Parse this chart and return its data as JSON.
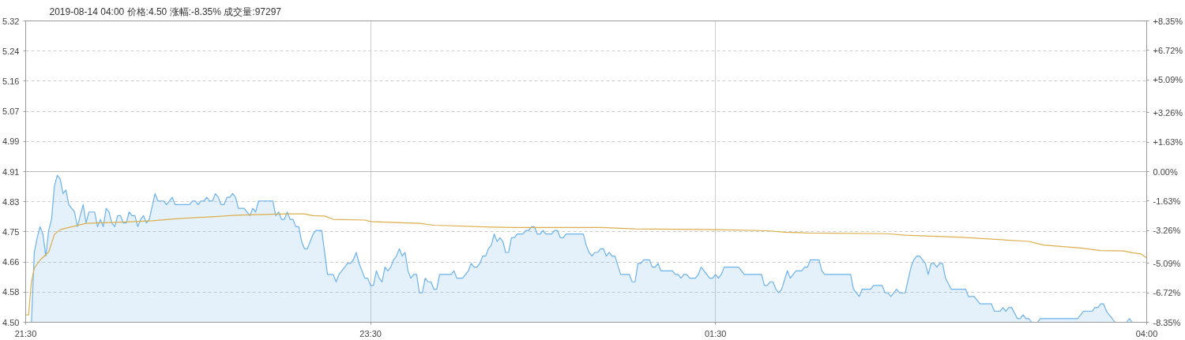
{
  "chart_data": {
    "type": "line",
    "title": "2019-08-14 04:00  价格:4.50  涨幅:-8.35%  成交量:97297",
    "xlim": [
      "2019-08-13T21:30",
      "2019-08-14T04:00"
    ],
    "xticks": [
      {
        "value": "2019-08-13T21:30",
        "label": "21:30"
      },
      {
        "value": "2019-08-13T23:30",
        "label": "23:30"
      },
      {
        "value": "2019-08-14T01:30",
        "label": "01:30"
      },
      {
        "value": "2019-08-14T04:00",
        "label": "04:00"
      }
    ],
    "ylim": [
      4.5,
      5.32
    ],
    "yticks": [
      {
        "value": 4.5,
        "label": "4.50"
      },
      {
        "value": 4.582,
        "label": "4.58"
      },
      {
        "value": 4.664,
        "label": "4.66"
      },
      {
        "value": 4.746,
        "label": "4.75"
      },
      {
        "value": 4.828,
        "label": "4.83"
      },
      {
        "value": 4.91,
        "label": "4.91"
      },
      {
        "value": 4.992,
        "label": "4.99"
      },
      {
        "value": 5.074,
        "label": "5.07"
      },
      {
        "value": 5.156,
        "label": "5.16"
      },
      {
        "value": 5.238,
        "label": "5.24"
      },
      {
        "value": 5.32,
        "label": "5.32"
      }
    ],
    "y2lim": [
      -8.35,
      8.35
    ],
    "y2ticks": [
      {
        "value": -8.35,
        "label": "-8.35%"
      },
      {
        "value": -6.72,
        "label": "-6.72%"
      },
      {
        "value": -5.09,
        "label": "-5.09%"
      },
      {
        "value": -3.26,
        "label": "-3.26%"
      },
      {
        "value": -1.63,
        "label": "-1.63%"
      },
      {
        "value": 0,
        "label": "0.00%"
      },
      {
        "value": 1.63,
        "label": "+1.63%"
      },
      {
        "value": 3.26,
        "label": "+3.26%"
      },
      {
        "value": 5.09,
        "label": "+5.09%"
      },
      {
        "value": 6.72,
        "label": "+6.72%"
      },
      {
        "value": 8.35,
        "label": "+8.35%"
      }
    ],
    "grid": true,
    "ref_lines": [
      {
        "axis": "y",
        "value": 4.91,
        "color": "#b8b8b8",
        "line_style": "solid"
      }
    ],
    "series": [
      {
        "type": "area",
        "color": "#6cb2eb",
        "x": [
          "2019-08-13T21:30",
          "2019-08-13T21:32",
          "2019-08-13T21:33",
          "2019-08-13T21:34",
          "2019-08-13T21:35",
          "2019-08-13T21:36",
          "2019-08-13T21:37",
          "2019-08-13T21:38",
          "2019-08-13T21:39",
          "2019-08-13T21:40",
          "2019-08-13T21:41",
          "2019-08-13T21:42",
          "2019-08-13T21:43",
          "2019-08-13T21:44",
          "2019-08-13T21:45",
          "2019-08-13T21:47",
          "2019-08-13T21:48",
          "2019-08-13T21:50",
          "2019-08-13T21:51",
          "2019-08-13T21:52",
          "2019-08-13T21:54",
          "2019-08-13T21:55",
          "2019-08-13T21:56",
          "2019-08-13T21:57",
          "2019-08-13T21:58",
          "2019-08-13T21:59",
          "2019-08-13T22:00",
          "2019-08-13T22:01",
          "2019-08-13T22:02",
          "2019-08-13T22:03",
          "2019-08-13T22:04",
          "2019-08-13T22:05",
          "2019-08-13T22:06",
          "2019-08-13T22:07",
          "2019-08-13T22:08",
          "2019-08-13T22:09",
          "2019-08-13T22:10",
          "2019-08-13T22:11",
          "2019-08-13T22:12",
          "2019-08-13T22:13",
          "2019-08-13T22:15",
          "2019-08-13T22:16",
          "2019-08-13T22:18",
          "2019-08-13T22:19",
          "2019-08-13T22:21",
          "2019-08-13T22:22",
          "2019-08-13T22:27",
          "2019-08-13T22:28",
          "2019-08-13T22:29",
          "2019-08-13T22:30",
          "2019-08-13T22:31",
          "2019-08-13T22:32",
          "2019-08-13T22:33",
          "2019-08-13T22:34",
          "2019-08-13T22:35",
          "2019-08-13T22:36",
          "2019-08-13T22:37",
          "2019-08-13T22:38",
          "2019-08-13T22:39",
          "2019-08-13T22:40",
          "2019-08-13T22:41",
          "2019-08-13T22:42",
          "2019-08-13T22:43",
          "2019-08-13T22:44",
          "2019-08-13T22:46",
          "2019-08-13T22:48",
          "2019-08-13T22:49",
          "2019-08-13T22:50",
          "2019-08-13T22:51",
          "2019-08-13T22:56",
          "2019-08-13T22:57",
          "2019-08-13T22:58",
          "2019-08-13T22:59",
          "2019-08-13T23:00",
          "2019-08-13T23:01",
          "2019-08-13T23:02",
          "2019-08-13T23:03",
          "2019-08-13T23:04",
          "2019-08-13T23:05",
          "2019-08-13T23:06",
          "2019-08-13T23:07",
          "2019-08-13T23:08",
          "2019-08-13T23:10",
          "2019-08-13T23:11",
          "2019-08-13T23:13",
          "2019-08-13T23:15",
          "2019-08-13T23:17",
          "2019-08-13T23:18",
          "2019-08-13T23:19",
          "2019-08-13T23:22",
          "2019-08-13T23:23",
          "2019-08-13T23:24",
          "2019-08-13T23:25",
          "2019-08-13T23:26",
          "2019-08-13T23:28",
          "2019-08-13T23:29",
          "2019-08-13T23:30",
          "2019-08-13T23:31",
          "2019-08-13T23:32",
          "2019-08-13T23:33",
          "2019-08-13T23:34",
          "2019-08-13T23:35",
          "2019-08-13T23:36",
          "2019-08-13T23:37",
          "2019-08-13T23:38",
          "2019-08-13T23:39",
          "2019-08-13T23:40",
          "2019-08-13T23:41",
          "2019-08-13T23:42",
          "2019-08-13T23:43",
          "2019-08-13T23:44",
          "2019-08-13T23:45",
          "2019-08-13T23:46",
          "2019-08-13T23:47",
          "2019-08-13T23:48",
          "2019-08-13T23:49",
          "2019-08-13T23:50",
          "2019-08-13T23:51",
          "2019-08-13T23:52",
          "2019-08-13T23:53",
          "2019-08-13T23:54",
          "2019-08-13T23:58",
          "2019-08-13T23:59",
          "2019-08-14T00:00",
          "2019-08-14T00:02",
          "2019-08-14T00:04",
          "2019-08-14T00:05",
          "2019-08-14T00:06",
          "2019-08-14T00:07",
          "2019-08-14T00:08",
          "2019-08-14T00:09",
          "2019-08-14T00:10",
          "2019-08-14T00:11",
          "2019-08-14T00:12",
          "2019-08-14T00:13",
          "2019-08-14T00:14",
          "2019-08-14T00:15",
          "2019-08-14T00:16",
          "2019-08-14T00:17",
          "2019-08-14T00:18",
          "2019-08-14T00:19",
          "2019-08-14T00:20",
          "2019-08-14T00:21",
          "2019-08-14T00:23",
          "2019-08-14T00:24",
          "2019-08-14T00:25",
          "2019-08-14T00:26",
          "2019-08-14T00:27",
          "2019-08-14T00:28",
          "2019-08-14T00:29",
          "2019-08-14T00:30",
          "2019-08-14T00:31",
          "2019-08-14T00:33",
          "2019-08-14T00:34",
          "2019-08-14T00:35",
          "2019-08-14T00:36",
          "2019-08-14T00:37",
          "2019-08-14T00:38",
          "2019-08-14T00:44",
          "2019-08-14T00:45",
          "2019-08-14T00:46",
          "2019-08-14T00:47",
          "2019-08-14T00:48",
          "2019-08-14T00:49",
          "2019-08-14T00:50",
          "2019-08-14T00:51",
          "2019-08-14T00:52",
          "2019-08-14T00:53",
          "2019-08-14T00:54",
          "2019-08-14T00:55",
          "2019-08-14T00:57",
          "2019-08-14T01:00",
          "2019-08-14T01:01",
          "2019-08-14T01:02",
          "2019-08-14T01:03",
          "2019-08-14T01:04",
          "2019-08-14T01:05",
          "2019-08-14T01:07",
          "2019-08-14T01:08",
          "2019-08-14T01:09",
          "2019-08-14T01:10",
          "2019-08-14T01:11",
          "2019-08-14T01:15",
          "2019-08-14T01:16",
          "2019-08-14T01:17",
          "2019-08-14T01:18",
          "2019-08-14T01:19",
          "2019-08-14T01:20",
          "2019-08-14T01:21",
          "2019-08-14T01:23",
          "2019-08-14T01:24",
          "2019-08-14T01:25",
          "2019-08-14T01:26",
          "2019-08-14T01:28",
          "2019-08-14T01:29",
          "2019-08-14T01:30",
          "2019-08-14T01:31",
          "2019-08-14T01:32",
          "2019-08-14T01:33",
          "2019-08-14T01:38",
          "2019-08-14T01:40",
          "2019-08-14T01:46",
          "2019-08-14T01:47",
          "2019-08-14T01:48",
          "2019-08-14T01:49",
          "2019-08-14T01:50",
          "2019-08-14T01:51",
          "2019-08-14T01:52",
          "2019-08-14T01:53",
          "2019-08-14T01:55",
          "2019-08-14T01:56",
          "2019-08-14T01:58",
          "2019-08-14T02:00",
          "2019-08-14T02:01",
          "2019-08-14T02:02",
          "2019-08-14T02:03",
          "2019-08-14T02:06",
          "2019-08-14T02:07",
          "2019-08-14T02:08",
          "2019-08-14T02:17",
          "2019-08-14T02:18",
          "2019-08-14T02:20",
          "2019-08-14T02:21",
          "2019-08-14T02:24",
          "2019-08-14T02:25",
          "2019-08-14T02:28",
          "2019-08-14T02:29",
          "2019-08-14T02:30",
          "2019-08-14T02:31",
          "2019-08-14T02:33",
          "2019-08-14T02:34",
          "2019-08-14T02:36",
          "2019-08-14T02:38",
          "2019-08-14T02:39",
          "2019-08-14T02:40",
          "2019-08-14T02:41",
          "2019-08-14T02:43",
          "2019-08-14T02:44",
          "2019-08-14T02:45",
          "2019-08-14T02:46",
          "2019-08-14T02:47",
          "2019-08-14T02:48",
          "2019-08-14T02:49",
          "2019-08-14T02:50",
          "2019-08-14T02:52",
          "2019-08-14T02:57",
          "2019-08-14T02:58",
          "2019-08-14T03:00",
          "2019-08-14T03:02",
          "2019-08-14T03:06",
          "2019-08-14T03:07",
          "2019-08-14T03:09",
          "2019-08-14T03:10",
          "2019-08-14T03:11",
          "2019-08-14T03:12",
          "2019-08-14T03:13",
          "2019-08-14T03:15",
          "2019-08-14T03:16",
          "2019-08-14T03:17",
          "2019-08-14T03:18",
          "2019-08-14T03:19",
          "2019-08-14T03:20",
          "2019-08-14T03:22",
          "2019-08-14T03:23",
          "2019-08-14T03:36",
          "2019-08-14T03:38",
          "2019-08-14T03:41",
          "2019-08-14T03:42",
          "2019-08-14T03:43",
          "2019-08-14T03:44",
          "2019-08-14T03:45",
          "2019-08-14T03:46",
          "2019-08-14T03:49",
          "2019-08-14T03:53",
          "2019-08-14T03:54",
          "2019-08-14T03:55",
          "2019-08-14T04:00"
        ],
        "values": [
          4.5,
          4.5,
          4.69,
          4.73,
          4.76,
          4.74,
          4.68,
          4.75,
          4.78,
          4.87,
          4.9,
          4.89,
          4.85,
          4.86,
          4.82,
          4.8,
          4.76,
          4.82,
          4.77,
          4.8,
          4.8,
          4.76,
          4.78,
          4.76,
          4.81,
          4.8,
          4.77,
          4.76,
          4.79,
          4.79,
          4.77,
          4.77,
          4.8,
          4.79,
          4.79,
          4.76,
          4.78,
          4.79,
          4.77,
          4.78,
          4.85,
          4.83,
          4.83,
          4.82,
          4.84,
          4.82,
          4.82,
          4.83,
          4.83,
          4.82,
          4.83,
          4.83,
          4.84,
          4.83,
          4.83,
          4.85,
          4.84,
          4.82,
          4.82,
          4.84,
          4.84,
          4.85,
          4.84,
          4.81,
          4.81,
          4.79,
          4.81,
          4.8,
          4.83,
          4.83,
          4.79,
          4.8,
          4.78,
          4.78,
          4.8,
          4.78,
          4.78,
          4.76,
          4.76,
          4.72,
          4.7,
          4.7,
          4.74,
          4.75,
          4.75,
          4.63,
          4.63,
          4.61,
          4.63,
          4.66,
          4.66,
          4.67,
          4.69,
          4.66,
          4.62,
          4.62,
          4.6,
          4.6,
          4.64,
          4.62,
          4.61,
          4.65,
          4.64,
          4.65,
          4.67,
          4.68,
          4.7,
          4.68,
          4.69,
          4.64,
          4.62,
          4.63,
          4.63,
          4.58,
          4.58,
          4.62,
          4.61,
          4.61,
          4.59,
          4.59,
          4.63,
          4.63,
          4.64,
          4.62,
          4.62,
          4.64,
          4.66,
          4.65,
          4.65,
          4.66,
          4.68,
          4.68,
          4.7,
          4.71,
          4.74,
          4.72,
          4.73,
          4.72,
          4.69,
          4.69,
          4.73,
          4.73,
          4.74,
          4.74,
          4.75,
          4.75,
          4.76,
          4.76,
          4.74,
          4.74,
          4.75,
          4.74,
          4.74,
          4.75,
          4.75,
          4.73,
          4.73,
          4.74,
          4.74,
          4.71,
          4.69,
          4.68,
          4.69,
          4.69,
          4.7,
          4.7,
          4.68,
          4.69,
          4.68,
          4.68,
          4.63,
          4.63,
          4.61,
          4.61,
          4.66,
          4.66,
          4.67,
          4.67,
          4.65,
          4.65,
          4.66,
          4.64,
          4.64,
          4.63,
          4.63,
          4.62,
          4.63,
          4.63,
          4.62,
          4.62,
          4.63,
          4.65,
          4.64,
          4.62,
          4.62,
          4.63,
          4.62,
          4.63,
          4.65,
          4.65,
          4.63,
          4.63,
          4.6,
          4.6,
          4.61,
          4.61,
          4.59,
          4.58,
          4.59,
          4.64,
          4.62,
          4.64,
          4.64,
          4.65,
          4.65,
          4.67,
          4.67,
          4.64,
          4.63,
          4.63,
          4.59,
          4.57,
          4.59,
          4.59,
          4.6,
          4.6,
          4.58,
          4.58,
          4.57,
          4.59,
          4.58,
          4.58,
          4.65,
          4.67,
          4.68,
          4.68,
          4.66,
          4.63,
          4.66,
          4.66,
          4.65,
          4.66,
          4.66,
          4.62,
          4.59,
          4.59,
          4.57,
          4.57,
          4.55,
          4.55,
          4.53,
          4.53,
          4.54,
          4.53,
          4.54,
          4.54,
          4.51,
          4.51,
          4.52,
          4.51,
          4.51,
          4.5,
          4.5,
          4.51,
          4.51,
          4.53,
          4.53,
          4.54,
          4.54,
          4.55,
          4.55,
          4.53,
          4.5,
          4.5,
          4.51,
          4.5,
          4.5
        ]
      },
      {
        "color": "#dcae4c",
        "x": [
          "2019-08-13T21:30",
          "2019-08-13T21:31",
          "2019-08-13T21:32",
          "2019-08-13T21:33",
          "2019-08-13T21:35",
          "2019-08-13T21:38",
          "2019-08-13T21:40",
          "2019-08-13T21:42",
          "2019-08-13T21:45",
          "2019-08-13T21:51",
          "2019-08-13T22:05",
          "2019-08-13T22:14",
          "2019-08-13T22:23",
          "2019-08-13T22:37",
          "2019-08-13T22:43",
          "2019-08-13T23:00",
          "2019-08-13T23:07",
          "2019-08-13T23:10",
          "2019-08-13T23:14",
          "2019-08-13T23:17",
          "2019-08-13T23:28",
          "2019-08-13T23:30",
          "2019-08-13T23:47",
          "2019-08-13T23:52",
          "2019-08-14T00:12",
          "2019-08-14T00:20",
          "2019-08-14T00:50",
          "2019-08-14T01:02",
          "2019-08-14T01:30",
          "2019-08-14T01:48",
          "2019-08-14T01:54",
          "2019-08-14T02:02",
          "2019-08-14T02:30",
          "2019-08-14T02:36",
          "2019-08-14T02:56",
          "2019-08-14T03:19",
          "2019-08-14T03:24",
          "2019-08-14T03:37",
          "2019-08-14T03:44",
          "2019-08-14T03:52",
          "2019-08-14T03:55",
          "2019-08-14T03:58",
          "2019-08-14T04:00"
        ],
        "values": [
          4.52,
          4.52,
          4.61,
          4.647,
          4.669,
          4.691,
          4.739,
          4.752,
          4.758,
          4.769,
          4.773,
          4.776,
          4.782,
          4.788,
          4.791,
          4.795,
          4.795,
          4.79,
          4.789,
          4.78,
          4.778,
          4.774,
          4.769,
          4.764,
          4.759,
          4.758,
          4.758,
          4.754,
          4.752,
          4.749,
          4.745,
          4.743,
          4.741,
          4.737,
          4.731,
          4.72,
          4.71,
          4.702,
          4.695,
          4.694,
          4.689,
          4.686,
          4.675
        ]
      }
    ]
  }
}
